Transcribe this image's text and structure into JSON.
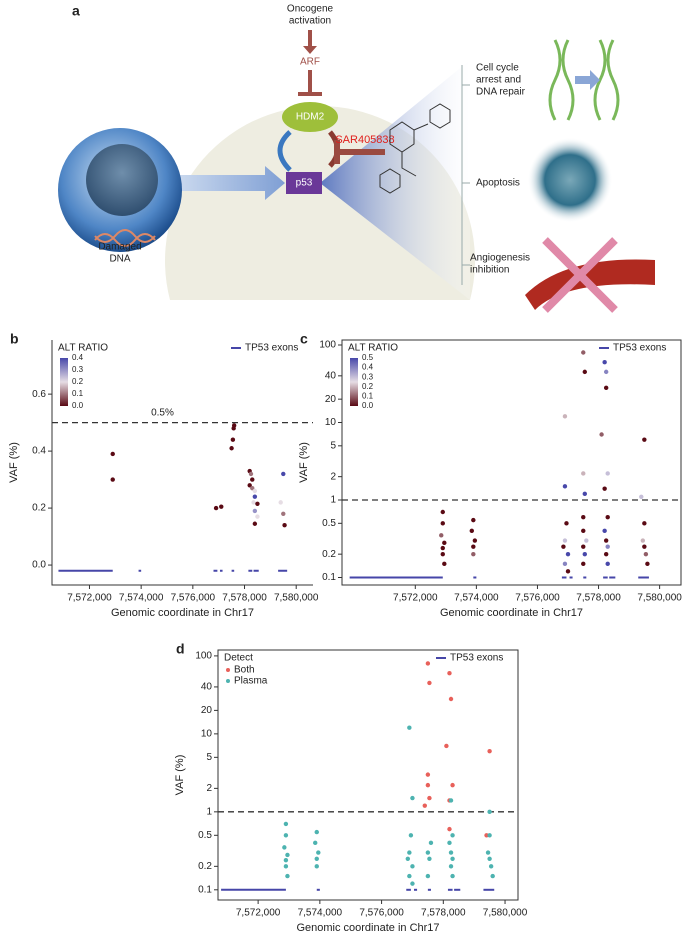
{
  "panel_a": {
    "label": "a",
    "oncogene": [
      "Oncogene",
      "activation"
    ],
    "arf": "ARF",
    "hdm2": "HDM2",
    "drug": "SAR405838",
    "p53": "p53",
    "damaged": [
      "Damaged",
      "DNA"
    ],
    "outcomes": [
      [
        "Cell cycle",
        "arrest and",
        "DNA repair"
      ],
      [
        "Apoptosis"
      ],
      [
        "Angiogenesis",
        "inhibition"
      ]
    ]
  },
  "chart_data": [
    {
      "panel_label": "b",
      "type": "scatter",
      "y_label": "VAF (%)",
      "x_label": "Genomic coordinate in Chr17",
      "frame": false,
      "xlim": [
        7570550,
        7580650
      ],
      "xticks": [
        {
          "value": 7572000,
          "label": "7,572,000"
        },
        {
          "value": 7574000,
          "label": "7,574,000"
        },
        {
          "value": 7576000,
          "label": "7,576,000"
        },
        {
          "value": 7578000,
          "label": "7,578,000"
        },
        {
          "value": 7580000,
          "label": "7,580,000"
        }
      ],
      "ylim": [
        -0.07,
        0.79
      ],
      "yticks": [
        {
          "value": 0,
          "label": "0.0"
        },
        0.2,
        0.4,
        0.6
      ],
      "log_y": false,
      "hline": 0.5,
      "hline_label": "0.5%",
      "colorbar_title": "ALT RATIO",
      "colorbar_lim": [
        0,
        0.4
      ],
      "colorbar_ticks": [
        0.4,
        0.3,
        0.2,
        0.1,
        {
          "value": 0,
          "label": "0.0"
        }
      ],
      "colorscale": [
        "#5a0a14",
        "#e6dde4",
        "#4848aa"
      ],
      "series": [
        {
          "x": [
            7572900,
            7572900,
            7576900,
            7577100,
            7577600,
            7577580,
            7577550,
            7577500,
            7578200,
            7578250,
            7578300,
            7578200,
            7578300,
            7578400,
            7578400,
            7578350,
            7578500,
            7578400,
            7578500,
            7578400,
            7579500,
            7579400,
            7579500,
            7579550
          ],
          "values": [
            0.39,
            0.3,
            0.2,
            0.205,
            0.49,
            0.48,
            0.44,
            0.41,
            0.33,
            0.32,
            0.3,
            0.28,
            0.27,
            0.26,
            0.24,
            0.22,
            0.215,
            0.19,
            0.17,
            0.145,
            0.32,
            0.22,
            0.18,
            0.14
          ],
          "alt_ratio": [
            0.0,
            0.0,
            0.0,
            0.0,
            0.0,
            0.0,
            0.0,
            0.0,
            0.0,
            0.1,
            0.0,
            0.0,
            0.1,
            0.2,
            0.4,
            0.2,
            0.0,
            0.3,
            0.2,
            0.0,
            0.4,
            0.2,
            0.1,
            0.0
          ]
        }
      ],
      "exons": {
        "name": "TP53 exons",
        "color": "#4646a8",
        "y": -0.02,
        "ranges": [
          [
            7570800,
            7572900
          ],
          [
            7573900,
            7574000
          ],
          [
            7576800,
            7576950
          ],
          [
            7577050,
            7577150
          ],
          [
            7577500,
            7577600
          ],
          [
            7578150,
            7578300
          ],
          [
            7578350,
            7578550
          ],
          [
            7579300,
            7579650
          ]
        ]
      }
    },
    {
      "panel_label": "c",
      "type": "scatter",
      "y_label": "VAF (%)",
      "x_label": "Genomic coordinate in Chr17",
      "frame": true,
      "xlim": [
        7569600,
        7580700
      ],
      "xticks": [
        {
          "value": 7572000,
          "label": "7,572,000"
        },
        {
          "value": 7574000,
          "label": "7,574,000"
        },
        {
          "value": 7576000,
          "label": "7,576,000"
        },
        {
          "value": 7578000,
          "label": "7,578,000"
        },
        {
          "value": 7580000,
          "label": "7,580,000"
        }
      ],
      "ylim": [
        0.08,
        116
      ],
      "yticks": [
        0.1,
        0.2,
        0.5,
        1,
        2,
        5,
        10,
        20,
        40,
        100
      ],
      "log_y": true,
      "hline": 1,
      "colorbar_title": "ALT RATIO",
      "colorbar_lim": [
        0,
        0.5
      ],
      "colorbar_ticks": [
        0.5,
        0.4,
        0.3,
        0.2,
        0.1,
        {
          "value": 0,
          "label": "0.0"
        }
      ],
      "colorscale": [
        "#5a0a14",
        "#e6dde4",
        "#4848aa"
      ],
      "series": [
        {
          "x": [
            7572900,
            7572900,
            7572850,
            7572950,
            7572900,
            7572900,
            7572950,
            7573900,
            7573850,
            7573950,
            7573900,
            7573900,
            7576900,
            7576900,
            7576950,
            7576900,
            7576850,
            7577000,
            7576900,
            7577000,
            7577500,
            7577550,
            7577500,
            7577550,
            7577500,
            7577500,
            7577600,
            7577500,
            7577550,
            7577500,
            7578200,
            7578250,
            7578250,
            7578100,
            7578300,
            7578200,
            7578300,
            7578200,
            7578250,
            7578300,
            7578250,
            7578300,
            7579500,
            7579400,
            7579500,
            7579450,
            7579500,
            7579550,
            7579600
          ],
          "values": [
            0.7,
            0.5,
            0.35,
            0.28,
            0.24,
            0.2,
            0.15,
            0.55,
            0.4,
            0.3,
            0.25,
            0.2,
            12,
            1.5,
            0.5,
            0.3,
            0.25,
            0.2,
            0.15,
            0.12,
            80,
            45,
            2.2,
            1.2,
            0.6,
            0.4,
            0.3,
            0.25,
            0.2,
            0.15,
            60,
            45,
            28,
            7,
            2.2,
            1.4,
            0.6,
            0.4,
            0.3,
            0.25,
            0.2,
            0.15,
            6,
            1.1,
            0.5,
            0.3,
            0.25,
            0.2,
            0.15
          ],
          "alt_ratio": [
            0.0,
            0.0,
            0.1,
            0.0,
            0.0,
            0.0,
            0.0,
            0.0,
            0.0,
            0.0,
            0.0,
            0.1,
            0.2,
            0.5,
            0.0,
            0.3,
            0.0,
            0.5,
            0.4,
            0.0,
            0.1,
            0.0,
            0.2,
            0.5,
            0.0,
            0.0,
            0.3,
            0.0,
            0.5,
            0.0,
            0.5,
            0.4,
            0.0,
            0.1,
            0.3,
            0.0,
            0.0,
            0.5,
            0.0,
            0.4,
            0.0,
            0.5,
            0.0,
            0.3,
            0.0,
            0.2,
            0.0,
            0.1,
            0.0
          ]
        }
      ],
      "exons": {
        "name": "TP53 exons",
        "color": "#4646a8",
        "y": 0.1,
        "ranges": [
          [
            7569850,
            7572900
          ],
          [
            7573900,
            7574000
          ],
          [
            7576800,
            7576950
          ],
          [
            7577050,
            7577150
          ],
          [
            7577500,
            7577600
          ],
          [
            7578150,
            7578300
          ],
          [
            7578350,
            7578550
          ],
          [
            7579300,
            7579650
          ]
        ]
      }
    },
    {
      "panel_label": "d",
      "type": "scatter",
      "y_label": "VAF (%)",
      "x_label": "Genomic coordinate in Chr17",
      "frame": true,
      "xlim": [
        7570700,
        7580420
      ],
      "xticks": [
        {
          "value": 7572000,
          "label": "7,572,000"
        },
        {
          "value": 7574000,
          "label": "7,574,000"
        },
        {
          "value": 7576000,
          "label": "7,576,000"
        },
        {
          "value": 7578000,
          "label": "7,578,000"
        },
        {
          "value": 7580000,
          "label": "7,580,000"
        }
      ],
      "ylim": [
        0.074,
        119
      ],
      "yticks": [
        0.1,
        0.2,
        0.5,
        1,
        2,
        5,
        10,
        20,
        40,
        100
      ],
      "log_y": true,
      "hline": 1,
      "legend_title": "Detect",
      "series": [
        {
          "name": "Both",
          "color": "#e8605a",
          "x": [
            7577500,
            7577550,
            7578200,
            7578250,
            7578100,
            7579500,
            7577500,
            7577500,
            7578300,
            7577550,
            7578200,
            7577400,
            7579400,
            7578200
          ],
          "values": [
            80,
            45,
            60,
            28,
            7,
            6,
            3,
            2.2,
            2.2,
            1.5,
            1.4,
            1.2,
            0.5,
            0.6
          ]
        },
        {
          "name": "Plasma",
          "color": "#4db3b0",
          "x": [
            7572900,
            7572900,
            7572850,
            7572950,
            7572900,
            7572900,
            7572950,
            7573900,
            7573850,
            7573950,
            7573900,
            7573900,
            7576900,
            7577000,
            7576950,
            7576900,
            7576850,
            7577000,
            7576900,
            7577000,
            7577600,
            7577500,
            7577550,
            7577500,
            7578250,
            7578300,
            7578200,
            7578250,
            7578300,
            7578250,
            7578300,
            7579500,
            7579500,
            7579450,
            7579500,
            7579550,
            7579600
          ],
          "values": [
            0.7,
            0.5,
            0.35,
            0.28,
            0.24,
            0.2,
            0.15,
            0.55,
            0.4,
            0.3,
            0.25,
            0.2,
            12,
            1.5,
            0.5,
            0.3,
            0.25,
            0.2,
            0.15,
            0.12,
            0.4,
            0.3,
            0.25,
            0.15,
            1.4,
            0.5,
            0.4,
            0.3,
            0.25,
            0.2,
            0.15,
            1.0,
            0.5,
            0.3,
            0.25,
            0.2,
            0.15
          ]
        }
      ],
      "exons": {
        "name": "TP53 exons",
        "color": "#4646a8",
        "y": 0.1,
        "ranges": [
          [
            7570800,
            7572900
          ],
          [
            7573900,
            7574000
          ],
          [
            7576800,
            7576950
          ],
          [
            7577050,
            7577150
          ],
          [
            7577500,
            7577600
          ],
          [
            7578150,
            7578300
          ],
          [
            7578350,
            7578550
          ],
          [
            7579300,
            7579650
          ]
        ]
      }
    }
  ]
}
